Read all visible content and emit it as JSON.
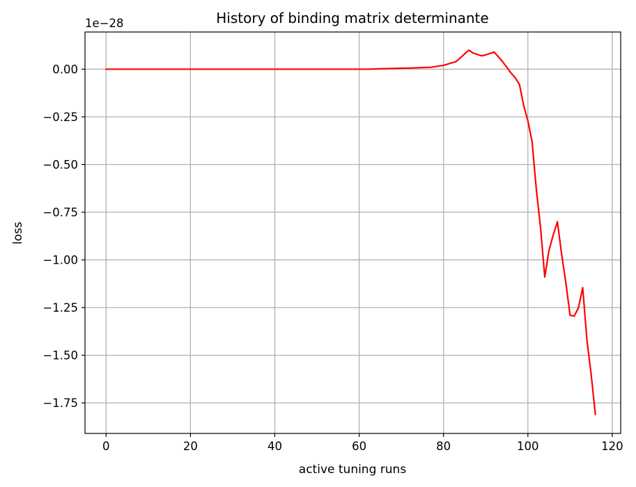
{
  "chart_data": {
    "type": "line",
    "title": "History of binding matrix determinante",
    "xlabel": "active tuning runs",
    "ylabel": "loss",
    "y_offset_label": "1e−28",
    "xlim": [
      -5,
      122
    ],
    "ylim": [
      -1.91,
      0.195
    ],
    "x_ticks": [
      0,
      20,
      40,
      60,
      80,
      100,
      120
    ],
    "x_tick_labels": [
      "0",
      "20",
      "40",
      "60",
      "80",
      "100",
      "120"
    ],
    "y_ticks": [
      0.0,
      -0.25,
      -0.5,
      -0.75,
      -1.0,
      -1.25,
      -1.5,
      -1.75
    ],
    "y_tick_labels": [
      "0.00",
      "−0.25",
      "−0.50",
      "−0.75",
      "−1.00",
      "−1.25",
      "−1.50",
      "−1.75"
    ],
    "grid": true,
    "series": [
      {
        "color": "#ff0000",
        "x": [
          0,
          10,
          20,
          30,
          40,
          50,
          60,
          62,
          65,
          68,
          72,
          77,
          80,
          83,
          86,
          87,
          89,
          90,
          92,
          94,
          96,
          97,
          98,
          99,
          100,
          101,
          102,
          103,
          104,
          105,
          106,
          107,
          108,
          109,
          110,
          111,
          112,
          113,
          114,
          115,
          116
        ],
        "y": [
          0.0,
          0.0,
          0.0,
          0.0,
          0.0,
          0.0,
          0.0,
          0.0,
          0.002,
          0.004,
          0.006,
          0.01,
          0.02,
          0.04,
          0.1,
          0.085,
          0.07,
          0.075,
          0.09,
          0.04,
          -0.02,
          -0.045,
          -0.08,
          -0.19,
          -0.27,
          -0.38,
          -0.63,
          -0.83,
          -1.09,
          -0.95,
          -0.87,
          -0.8,
          -0.97,
          -1.12,
          -1.29,
          -1.295,
          -1.25,
          -1.145,
          -1.42,
          -1.6,
          -1.81
        ]
      }
    ]
  }
}
